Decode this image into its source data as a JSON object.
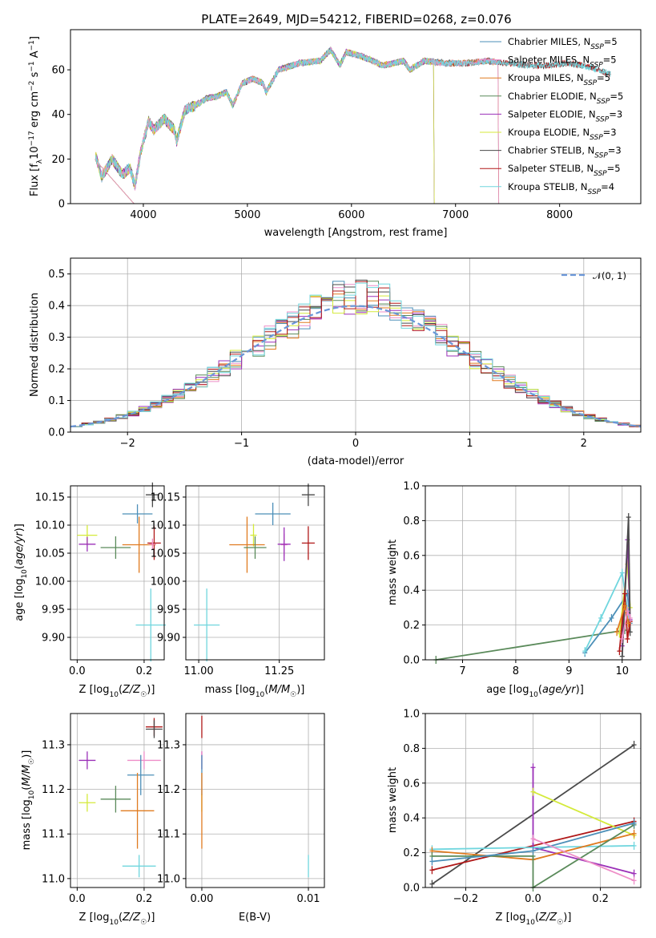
{
  "figure_title": "PLATE=2649, MJD=54212, FIBERID=0268, z=0.076",
  "model_colors": {
    "Chabrier MILES": "#4c8fb8",
    "Salpeter MILES": "#ee8ec8",
    "Kroupa MILES": "#e07b20",
    "Chabrier ELODIE": "#5a8a5a",
    "Salpeter ELODIE": "#9b30b8",
    "Kroupa ELODIE": "#d4ea3a",
    "Chabrier STELIB": "#4a4a4a",
    "Salpeter STELIB": "#b01818",
    "Kroupa STELIB": "#70d6de"
  },
  "chart_data": [
    {
      "id": "spectrum",
      "type": "line",
      "xlabel": "wavelength [Angstrom, rest frame]",
      "ylabel": "Flux [f_λ 10^-17 erg cm^-2 s^-1 A^-1]",
      "ylabel_parts": {
        "pre": "Flux [f",
        "sub": "λ",
        "mid": "10",
        "sup1": "−17",
        "mid2": " erg cm",
        "sup2": "−2",
        "mid3": " s",
        "sup3": "−1",
        "mid4": " A",
        "sup4": "−1",
        "post": "]"
      },
      "xlim": [
        3300,
        8780
      ],
      "ylim": [
        0,
        78
      ],
      "xticks": [
        4000,
        5000,
        6000,
        7000,
        8000
      ],
      "yticks": [
        0,
        20,
        40,
        60
      ],
      "spectrum_anchor_points": [
        [
          3540,
          22
        ],
        [
          3600,
          12
        ],
        [
          3700,
          20
        ],
        [
          3800,
          13
        ],
        [
          3870,
          16
        ],
        [
          3920,
          8
        ],
        [
          3970,
          22
        ],
        [
          4050,
          37
        ],
        [
          4100,
          33
        ],
        [
          4200,
          38
        ],
        [
          4300,
          33
        ],
        [
          4320,
          28
        ],
        [
          4400,
          42
        ],
        [
          4500,
          44
        ],
        [
          4600,
          47
        ],
        [
          4700,
          48
        ],
        [
          4800,
          50
        ],
        [
          4860,
          44
        ],
        [
          4950,
          54
        ],
        [
          5050,
          56
        ],
        [
          5150,
          54
        ],
        [
          5180,
          50
        ],
        [
          5300,
          60
        ],
        [
          5500,
          63
        ],
        [
          5700,
          64
        ],
        [
          5800,
          69
        ],
        [
          5890,
          62
        ],
        [
          5950,
          68
        ],
        [
          6100,
          66
        ],
        [
          6300,
          62
        ],
        [
          6500,
          64
        ],
        [
          6563,
          60
        ],
        [
          6700,
          64
        ],
        [
          6900,
          63
        ],
        [
          7100,
          63
        ],
        [
          7300,
          64
        ],
        [
          7500,
          63
        ],
        [
          7700,
          62
        ],
        [
          7900,
          62
        ],
        [
          8100,
          63
        ],
        [
          8300,
          61
        ],
        [
          8500,
          58
        ]
      ],
      "series_ranges": {
        "Chabrier MILES": [
          3540,
          7410
        ],
        "Salpeter MILES": [
          3540,
          7410
        ],
        "Kroupa MILES": [
          3540,
          7410
        ],
        "Chabrier ELODIE": [
          3540,
          6790
        ],
        "Salpeter ELODIE": [
          3540,
          6790
        ],
        "Kroupa ELODIE": [
          3540,
          6790
        ],
        "Chabrier STELIB": [
          3540,
          8490
        ],
        "Salpeter STELIB": [
          3540,
          8490
        ],
        "Kroupa STELIB": [
          3540,
          8490
        ]
      },
      "legend_position": "right",
      "legend": [
        {
          "name": "Chabrier MILES",
          "n": "5"
        },
        {
          "name": "Salpeter MILES",
          "n": "5"
        },
        {
          "name": "Kroupa MILES",
          "n": "5"
        },
        {
          "name": "Chabrier ELODIE",
          "n": "5"
        },
        {
          "name": "Salpeter ELODIE",
          "n": "3"
        },
        {
          "name": "Kroupa ELODIE",
          "n": "3"
        },
        {
          "name": "Chabrier STELIB",
          "n": "3"
        },
        {
          "name": "Salpeter STELIB",
          "n": "5"
        },
        {
          "name": "Kroupa STELIB",
          "n": "4"
        }
      ],
      "legend_n_label": "N",
      "legend_n_sub": "SSP"
    },
    {
      "id": "residuals",
      "type": "step-histogram",
      "xlabel": "(data-model)/error",
      "ylabel": "Normed distribution",
      "xlim": [
        -2.5,
        2.5
      ],
      "ylim": [
        0,
        0.55
      ],
      "xticks": [
        -2,
        -1,
        0,
        1,
        2
      ],
      "yticks": [
        0.0,
        0.1,
        0.2,
        0.3,
        0.4,
        0.5
      ],
      "grid": true,
      "bin_width": 0.1,
      "reference_curve": {
        "name": "𝒩(0, 1)",
        "color": "#6a96d8",
        "style": "dashed"
      },
      "legend_position": "top-right"
    },
    {
      "id": "age_vs_Z",
      "type": "errorbar",
      "xlabel": "Z [log10(Z/Z☉)]",
      "ylabel": "age [log10(age/yr)]",
      "xlim": [
        -0.02,
        0.26
      ],
      "ylim": [
        9.86,
        10.17
      ],
      "xticks": [
        0.0,
        0.2
      ],
      "yticks": [
        9.9,
        9.95,
        10.0,
        10.05,
        10.1,
        10.15
      ],
      "grid": true,
      "points": [
        {
          "model": "Kroupa ELODIE",
          "x": 0.03,
          "y": 10.082,
          "xerr": 0.03,
          "yerr": 0.018
        },
        {
          "model": "Salpeter ELODIE",
          "x": 0.03,
          "y": 10.066,
          "xerr": 0.025,
          "yerr": 0.013
        },
        {
          "model": "Chabrier ELODIE",
          "x": 0.115,
          "y": 10.06,
          "xerr": 0.045,
          "yerr": 0.02
        },
        {
          "model": "Chabrier MILES",
          "x": 0.18,
          "y": 10.12,
          "xerr": 0.045,
          "yerr": 0.017
        },
        {
          "model": "Chabrier STELIB",
          "x": 0.225,
          "y": 10.154,
          "xerr": 0.02,
          "yerr": 0.022
        },
        {
          "model": "Kroupa MILES",
          "x": 0.185,
          "y": 10.065,
          "xerr": 0.05,
          "yerr": 0.05
        },
        {
          "model": "Salpeter STELIB",
          "x": 0.23,
          "y": 10.068,
          "xerr": 0.02,
          "yerr": 0.03
        },
        {
          "model": "Salpeter MILES",
          "x": 0.225,
          "y": 10.066,
          "xerr": 0.01,
          "yerr": 0.01
        },
        {
          "model": "Kroupa STELIB",
          "x": 0.22,
          "y": 9.922,
          "xerr": 0.045,
          "yerr": 0.065
        }
      ]
    },
    {
      "id": "age_vs_mass",
      "type": "errorbar",
      "xlabel": "mass [log10(M/M☉)]",
      "xlim": [
        10.96,
        11.39
      ],
      "ylim": [
        9.86,
        10.17
      ],
      "xticks": [
        11.0,
        11.25
      ],
      "yticks": [
        9.9,
        9.95,
        10.0,
        10.05,
        10.1,
        10.15
      ],
      "grid": true,
      "points": [
        {
          "model": "Kroupa ELODIE",
          "x": 11.17,
          "y": 10.082,
          "xerr": 0.01,
          "yerr": 0.02
        },
        {
          "model": "Kroupa MILES",
          "x": 11.15,
          "y": 10.065,
          "xerr": 0.055,
          "yerr": 0.05
        },
        {
          "model": "Chabrier ELODIE",
          "x": 11.175,
          "y": 10.06,
          "xerr": 0.035,
          "yerr": 0.02
        },
        {
          "model": "Chabrier MILES",
          "x": 11.23,
          "y": 10.12,
          "xerr": 0.055,
          "yerr": 0.02
        },
        {
          "model": "Salpeter MILES",
          "x": 11.265,
          "y": 10.065,
          "xerr": 0.01,
          "yerr": 0.02
        },
        {
          "model": "Salpeter ELODIE",
          "x": 11.265,
          "y": 10.066,
          "xerr": 0.02,
          "yerr": 0.03
        },
        {
          "model": "Chabrier STELIB",
          "x": 11.34,
          "y": 10.154,
          "xerr": 0.02,
          "yerr": 0.02
        },
        {
          "model": "Salpeter STELIB",
          "x": 11.34,
          "y": 10.068,
          "xerr": 0.02,
          "yerr": 0.03
        },
        {
          "model": "Kroupa STELIB",
          "x": 11.025,
          "y": 9.922,
          "xerr": 0.04,
          "yerr": 0.065
        }
      ]
    },
    {
      "id": "weight_vs_age",
      "type": "line",
      "xlabel": "age [log10(age/yr)]",
      "ylabel": "mass weight",
      "xlim": [
        6.3,
        10.35
      ],
      "ylim": [
        0,
        1.0
      ],
      "xticks": [
        7,
        8,
        9,
        10
      ],
      "yticks": [
        0.0,
        0.2,
        0.4,
        0.6,
        0.8,
        1.0
      ],
      "grid": true,
      "series": [
        {
          "model": "Chabrier ELODIE",
          "points": [
            [
              6.5,
              0.0
            ],
            [
              10.05,
              0.17
            ]
          ]
        },
        {
          "model": "Chabrier MILES",
          "points": [
            [
              9.3,
              0.04
            ],
            [
              9.8,
              0.24
            ],
            [
              10.1,
              0.38
            ],
            [
              10.15,
              0.21
            ]
          ]
        },
        {
          "model": "Kroupa STELIB",
          "points": [
            [
              9.3,
              0.05
            ],
            [
              9.6,
              0.24
            ],
            [
              10.0,
              0.5
            ],
            [
              10.12,
              0.24
            ]
          ]
        },
        {
          "model": "Kroupa ELODIE",
          "points": [
            [
              9.95,
              0.15
            ],
            [
              10.1,
              0.55
            ],
            [
              10.15,
              0.3
            ]
          ]
        },
        {
          "model": "Salpeter ELODIE",
          "points": [
            [
              10.0,
              0.08
            ],
            [
              10.1,
              0.69
            ],
            [
              10.15,
              0.23
            ]
          ]
        },
        {
          "model": "Chabrier STELIB",
          "points": [
            [
              10.0,
              0.02
            ],
            [
              10.12,
              0.82
            ],
            [
              10.15,
              0.16
            ]
          ]
        },
        {
          "model": "Salpeter STELIB",
          "points": [
            [
              9.95,
              0.05
            ],
            [
              10.05,
              0.38
            ],
            [
              10.1,
              0.12
            ],
            [
              10.15,
              0.22
            ]
          ]
        },
        {
          "model": "Kroupa MILES",
          "points": [
            [
              9.9,
              0.16
            ],
            [
              10.05,
              0.31
            ],
            [
              10.12,
              0.21
            ]
          ]
        },
        {
          "model": "Salpeter MILES",
          "points": [
            [
              10.0,
              0.12
            ],
            [
              10.1,
              0.28
            ],
            [
              10.15,
              0.24
            ]
          ]
        }
      ]
    },
    {
      "id": "mass_vs_Z",
      "type": "errorbar",
      "xlabel": "Z [log10(Z/Z☉)]",
      "ylabel": "mass [log10(M/M☉)]",
      "xlim": [
        -0.02,
        0.26
      ],
      "ylim": [
        10.98,
        11.37
      ],
      "xticks": [
        0.0,
        0.2
      ],
      "yticks": [
        11.0,
        11.1,
        11.2,
        11.3
      ],
      "grid": true,
      "points": [
        {
          "model": "Salpeter ELODIE",
          "x": 0.03,
          "y": 11.265,
          "xerr": 0.025,
          "yerr": 0.02
        },
        {
          "model": "Kroupa ELODIE",
          "x": 0.03,
          "y": 11.17,
          "xerr": 0.025,
          "yerr": 0.02
        },
        {
          "model": "Chabrier ELODIE",
          "x": 0.115,
          "y": 11.178,
          "xerr": 0.045,
          "yerr": 0.03
        },
        {
          "model": "Salpeter MILES",
          "x": 0.2,
          "y": 11.265,
          "xerr": 0.05,
          "yerr": 0.02
        },
        {
          "model": "Chabrier MILES",
          "x": 0.19,
          "y": 11.232,
          "xerr": 0.04,
          "yerr": 0.045
        },
        {
          "model": "Kroupa MILES",
          "x": 0.18,
          "y": 11.152,
          "xerr": 0.05,
          "yerr": 0.085
        },
        {
          "model": "Salpeter STELIB",
          "x": 0.23,
          "y": 11.34,
          "xerr": 0.025,
          "yerr": 0.02
        },
        {
          "model": "Chabrier STELIB",
          "x": 0.23,
          "y": 11.335,
          "xerr": 0.025,
          "yerr": 0.02
        },
        {
          "model": "Kroupa STELIB",
          "x": 0.185,
          "y": 11.028,
          "xerr": 0.05,
          "yerr": 0.025
        }
      ]
    },
    {
      "id": "mass_vs_EBV",
      "type": "errorbar",
      "xlabel": "E(B-V)",
      "xlim": [
        -0.0015,
        0.0115
      ],
      "ylim": [
        10.98,
        11.37
      ],
      "xticks": [
        0.0,
        0.01
      ],
      "yticks": [
        11.0,
        11.1,
        11.2,
        11.3
      ],
      "grid": true,
      "points": [
        {
          "model": "Salpeter STELIB",
          "x": 0.0,
          "y": 11.34,
          "xerr": 0.0,
          "yerr": 0.025
        },
        {
          "model": "Salpeter ELODIE",
          "x": 0.0,
          "y": 11.265,
          "xerr": 0.0,
          "yerr": 0.02
        },
        {
          "model": "Salpeter MILES",
          "x": 0.0,
          "y": 11.265,
          "xerr": 0.0,
          "yerr": 0.02
        },
        {
          "model": "Chabrier MILES",
          "x": 0.0,
          "y": 11.232,
          "xerr": 0.0,
          "yerr": 0.045
        },
        {
          "model": "Kroupa ELODIE",
          "x": 0.0,
          "y": 11.17,
          "xerr": 0.0,
          "yerr": 0.02
        },
        {
          "model": "Kroupa MILES",
          "x": 0.0,
          "y": 11.152,
          "xerr": 0.0,
          "yerr": 0.085
        },
        {
          "model": "Kroupa STELIB",
          "x": 0.01,
          "y": 11.028,
          "xerr": 0.0,
          "yerr": 0.025
        }
      ]
    },
    {
      "id": "weight_vs_Z",
      "type": "line",
      "xlabel": "Z [log10(Z/Z☉)]",
      "ylabel": "mass weight",
      "xlim": [
        -0.32,
        0.32
      ],
      "ylim": [
        0,
        1.0
      ],
      "xticks": [
        -0.2,
        0.0,
        0.2
      ],
      "yticks": [
        0.0,
        0.2,
        0.4,
        0.6,
        0.8,
        1.0
      ],
      "grid": true,
      "series": [
        {
          "model": "Chabrier STELIB",
          "points": [
            [
              -0.3,
              0.02
            ],
            [
              0.3,
              0.82
            ]
          ]
        },
        {
          "model": "Salpeter STELIB",
          "points": [
            [
              -0.3,
              0.1
            ],
            [
              0.3,
              0.38
            ]
          ]
        },
        {
          "model": "Salpeter ELODIE",
          "points": [
            [
              0.0,
              0.69
            ],
            [
              0.0,
              0.23
            ],
            [
              0.3,
              0.08
            ]
          ]
        },
        {
          "model": "Kroupa ELODIE",
          "points": [
            [
              0.0,
              0.55
            ],
            [
              0.3,
              0.3
            ]
          ]
        },
        {
          "model": "Kroupa STELIB",
          "points": [
            [
              -0.3,
              0.22
            ],
            [
              0.3,
              0.24
            ]
          ]
        },
        {
          "model": "Kroupa MILES",
          "points": [
            [
              -0.3,
              0.21
            ],
            [
              0.0,
              0.16
            ],
            [
              0.3,
              0.31
            ]
          ]
        },
        {
          "model": "Chabrier ELODIE",
          "points": [
            [
              -0.3,
              0.18
            ],
            [
              0.0,
              0.18
            ],
            [
              0.0,
              0.0
            ],
            [
              0.3,
              0.36
            ]
          ]
        },
        {
          "model": "Chabrier MILES",
          "points": [
            [
              -0.3,
              0.15
            ],
            [
              0.0,
              0.21
            ],
            [
              0.3,
              0.37
            ]
          ]
        },
        {
          "model": "Salpeter MILES",
          "points": [
            [
              0.0,
              0.28
            ],
            [
              0.3,
              0.04
            ]
          ]
        }
      ]
    }
  ]
}
